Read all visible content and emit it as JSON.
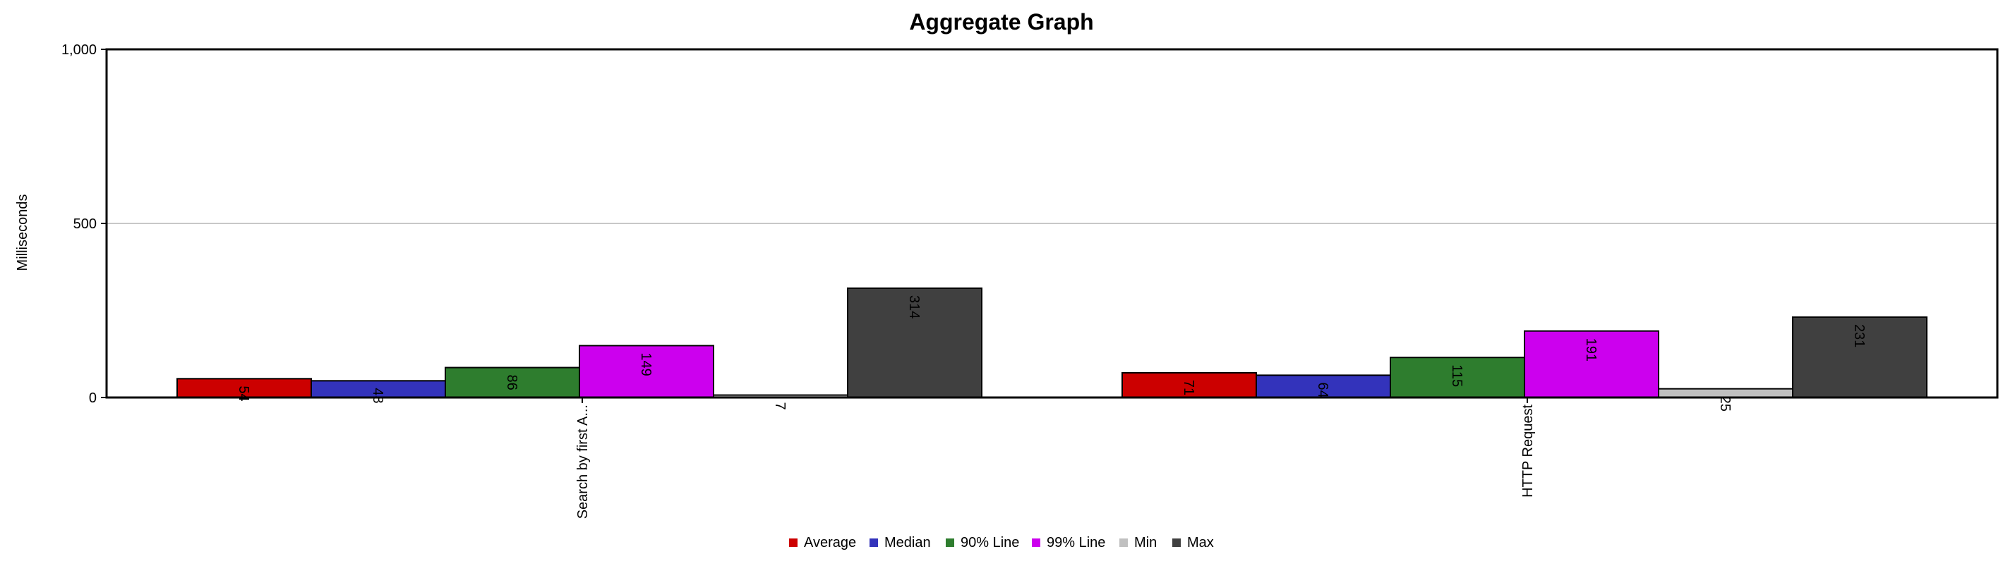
{
  "chart_data": {
    "type": "bar",
    "title": "Aggregate Graph",
    "xlabel": "",
    "ylabel": "Milliseconds",
    "ylim": [
      0,
      1000
    ],
    "yticks": [
      0,
      500,
      1000
    ],
    "ytick_labels": [
      "0",
      "500",
      "1,000"
    ],
    "grid": "horizontal",
    "legend_position": "bottom",
    "categories": [
      "Search by first A...",
      "HTTP Request"
    ],
    "series": [
      {
        "name": "Average",
        "color": "#cc0000",
        "values": [
          54,
          71
        ]
      },
      {
        "name": "Median",
        "color": "#3333bb",
        "values": [
          48,
          64
        ]
      },
      {
        "name": "90% Line",
        "color": "#2e7d2e",
        "values": [
          86,
          115
        ]
      },
      {
        "name": "99% Line",
        "color": "#cc00ee",
        "values": [
          149,
          191
        ]
      },
      {
        "name": "Min",
        "color": "#c0c0c0",
        "values": [
          7,
          25
        ]
      },
      {
        "name": "Max",
        "color": "#404040",
        "values": [
          314,
          231
        ]
      }
    ]
  }
}
